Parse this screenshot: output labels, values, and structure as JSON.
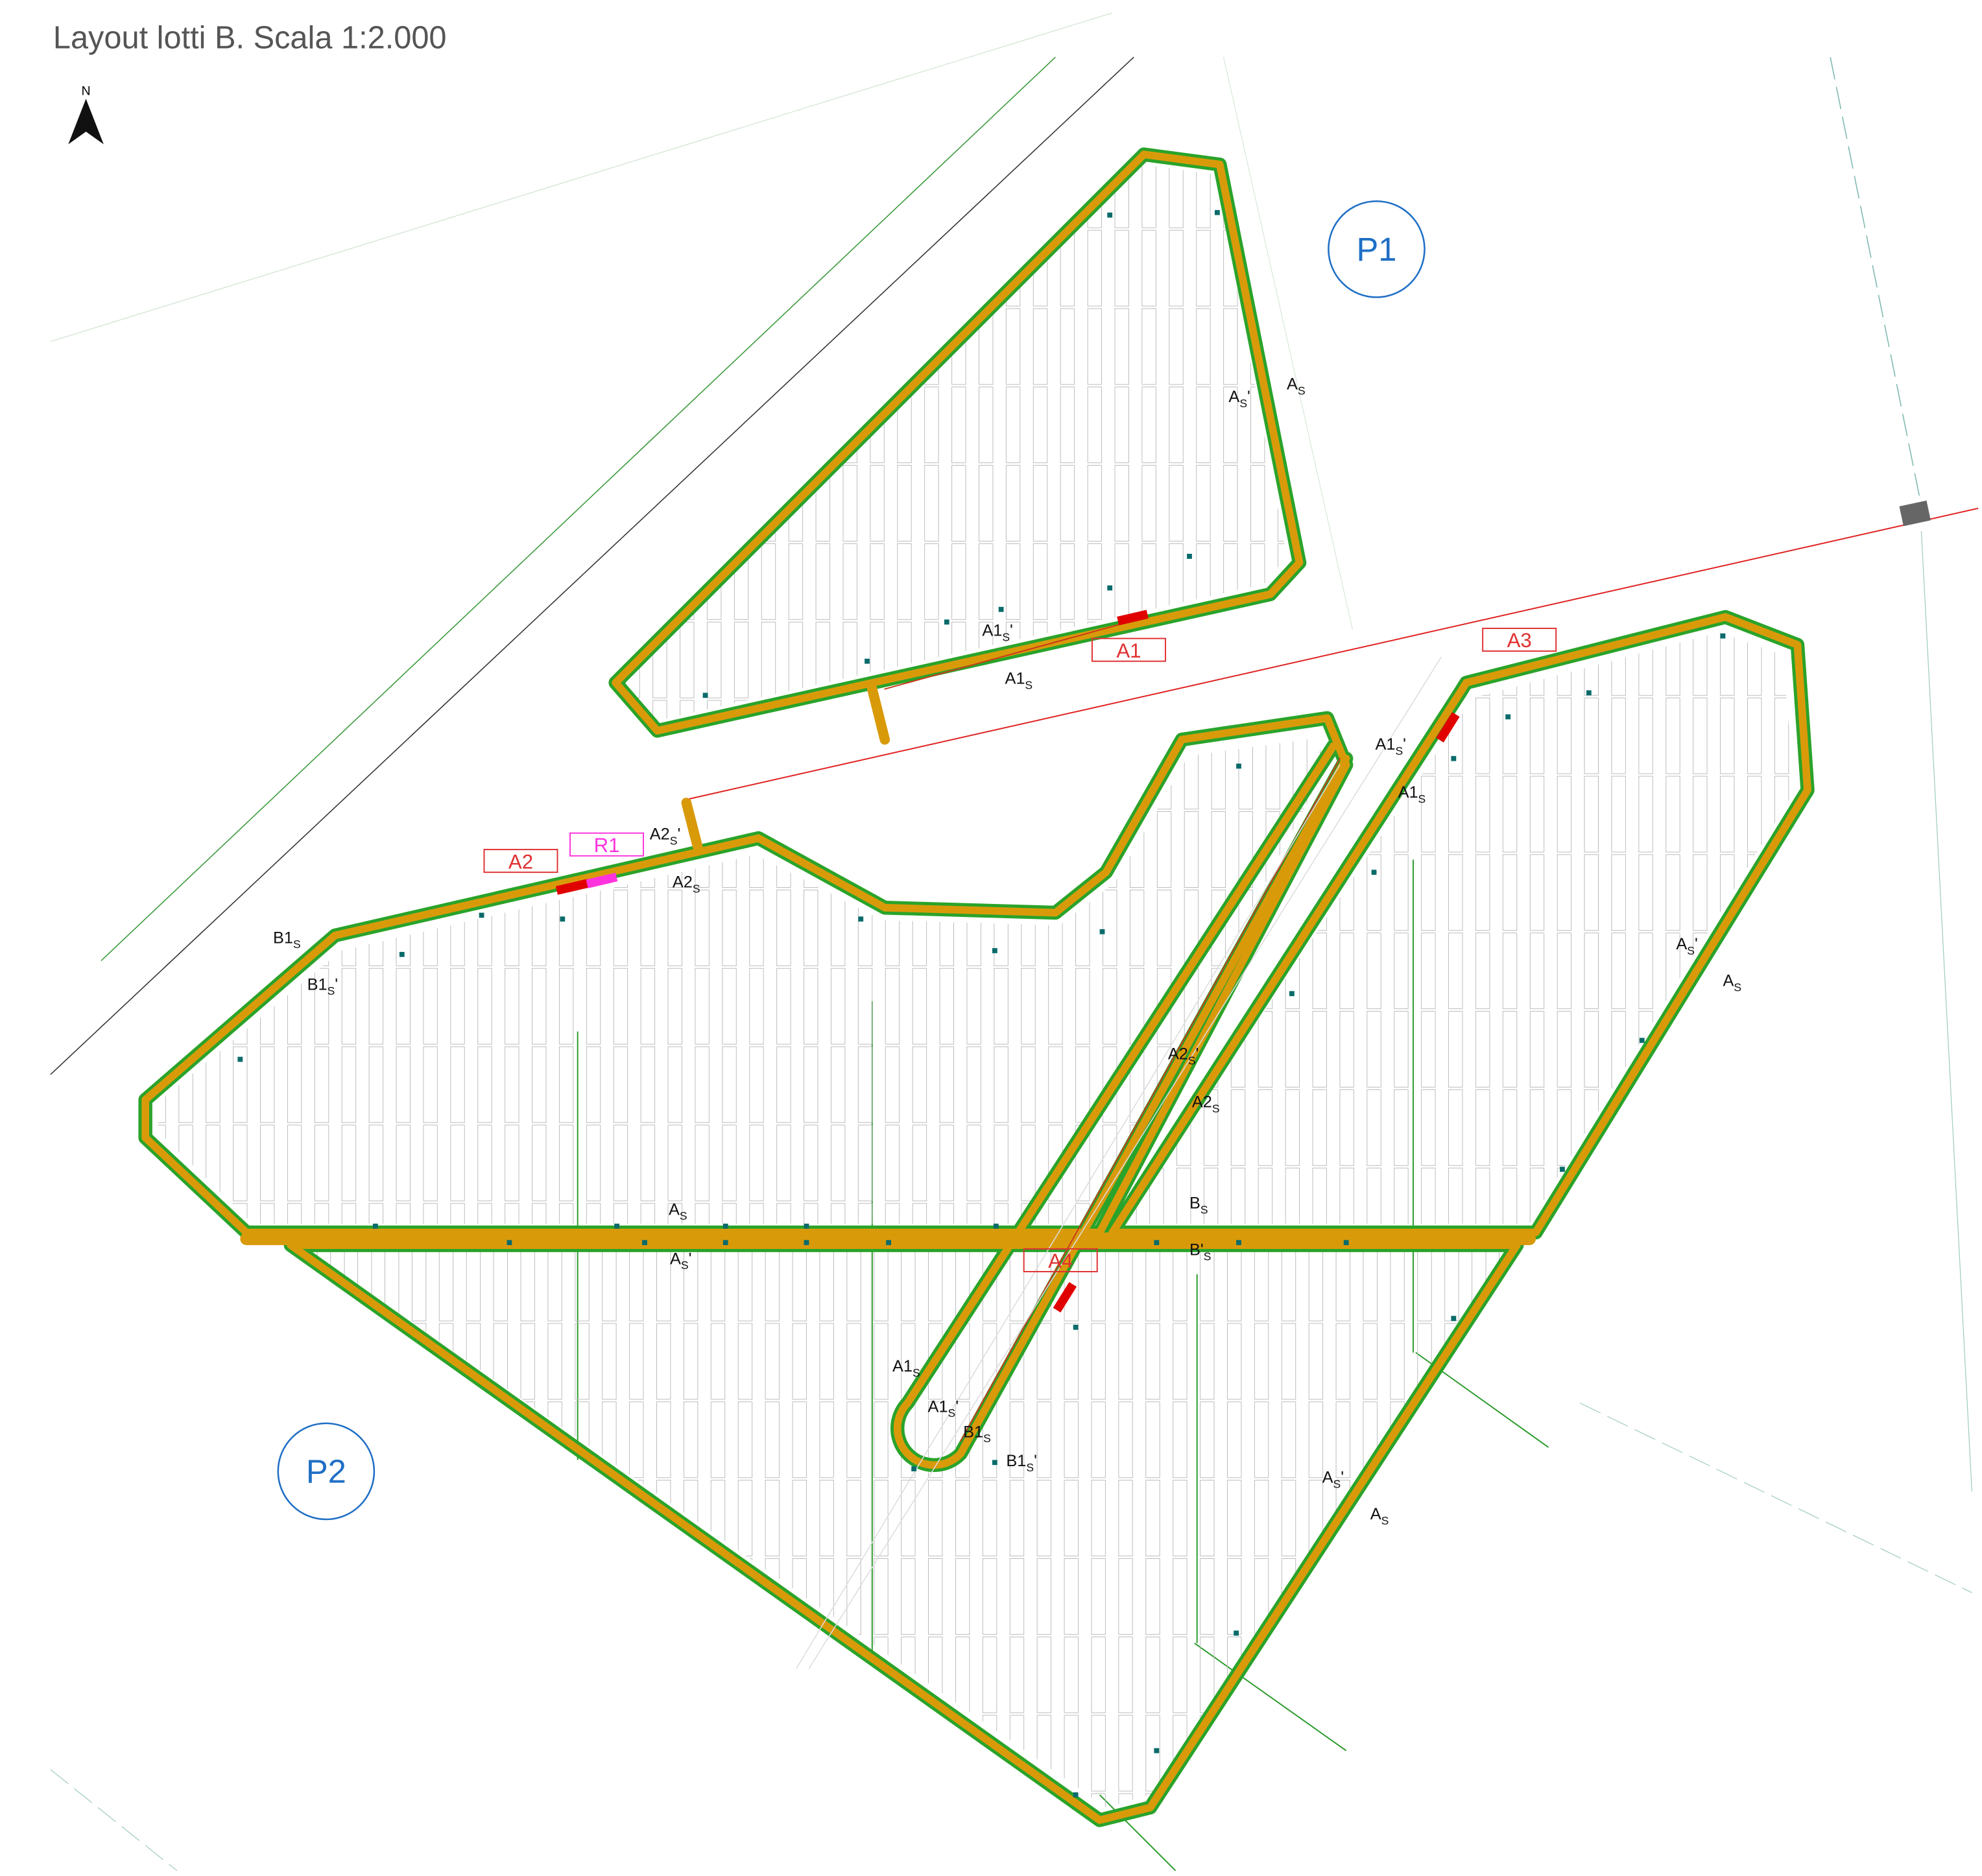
{
  "header": {
    "title": "Layout lotti B. Scala 1:2.000"
  },
  "north": "N",
  "zones": [
    "P1",
    "P2"
  ],
  "areas": [
    "A1",
    "A2",
    "A3",
    "A4"
  ],
  "cabins": [
    "R1"
  ],
  "sections": [
    {
      "base": "A",
      "sub": "S",
      "suffix": "'"
    },
    {
      "base": "A",
      "sub": "S"
    },
    {
      "base": "A1",
      "sub": "S",
      "suffix": "'"
    },
    {
      "base": "A1",
      "sub": "S"
    },
    {
      "base": "A2",
      "sub": "S",
      "suffix": "'"
    },
    {
      "base": "A2",
      "sub": "S"
    },
    {
      "base": "B1",
      "sub": "S"
    },
    {
      "base": "B1",
      "sub": "S",
      "suffix": "'"
    },
    {
      "base": "A1",
      "sub": "S",
      "suffix": "'"
    },
    {
      "base": "A1",
      "sub": "S"
    },
    {
      "base": "A",
      "sub": "S",
      "suffix": "'"
    },
    {
      "base": "A",
      "sub": "S"
    },
    {
      "base": "A2",
      "sub": "S",
      "suffix": "'"
    },
    {
      "base": "A2",
      "sub": "S"
    },
    {
      "base": "A",
      "sub": "S"
    },
    {
      "base": "A",
      "sub": "S",
      "suffix": "'"
    },
    {
      "base": "B",
      "sub": "S"
    },
    {
      "base": "B'",
      "sub": "S"
    },
    {
      "base": "A1",
      "sub": "S"
    },
    {
      "base": "A1",
      "sub": "S",
      "suffix": "'"
    },
    {
      "base": "B1",
      "sub": "S"
    },
    {
      "base": "B1",
      "sub": "S",
      "suffix": "'"
    },
    {
      "base": "A",
      "sub": "S",
      "suffix": "'"
    },
    {
      "base": "A",
      "sub": "S"
    }
  ]
}
